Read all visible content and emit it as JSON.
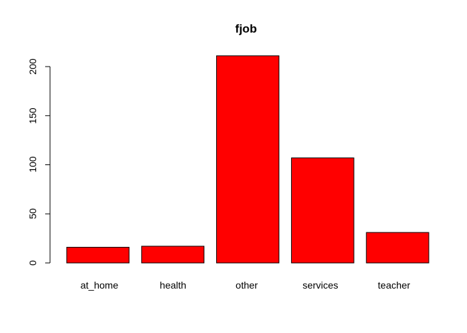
{
  "chart_data": {
    "type": "bar",
    "title": "fjob",
    "xlabel": "",
    "ylabel": "",
    "categories": [
      "at_home",
      "health",
      "other",
      "services",
      "teacher"
    ],
    "values": [
      16,
      17,
      211,
      107,
      31
    ],
    "ylim": [
      0,
      211
    ],
    "yticks": [
      "0",
      "50",
      "100",
      "150",
      "200"
    ],
    "bar_color": "#ff0000",
    "bar_border_color": "#000000",
    "grid": false,
    "legend": "none"
  }
}
